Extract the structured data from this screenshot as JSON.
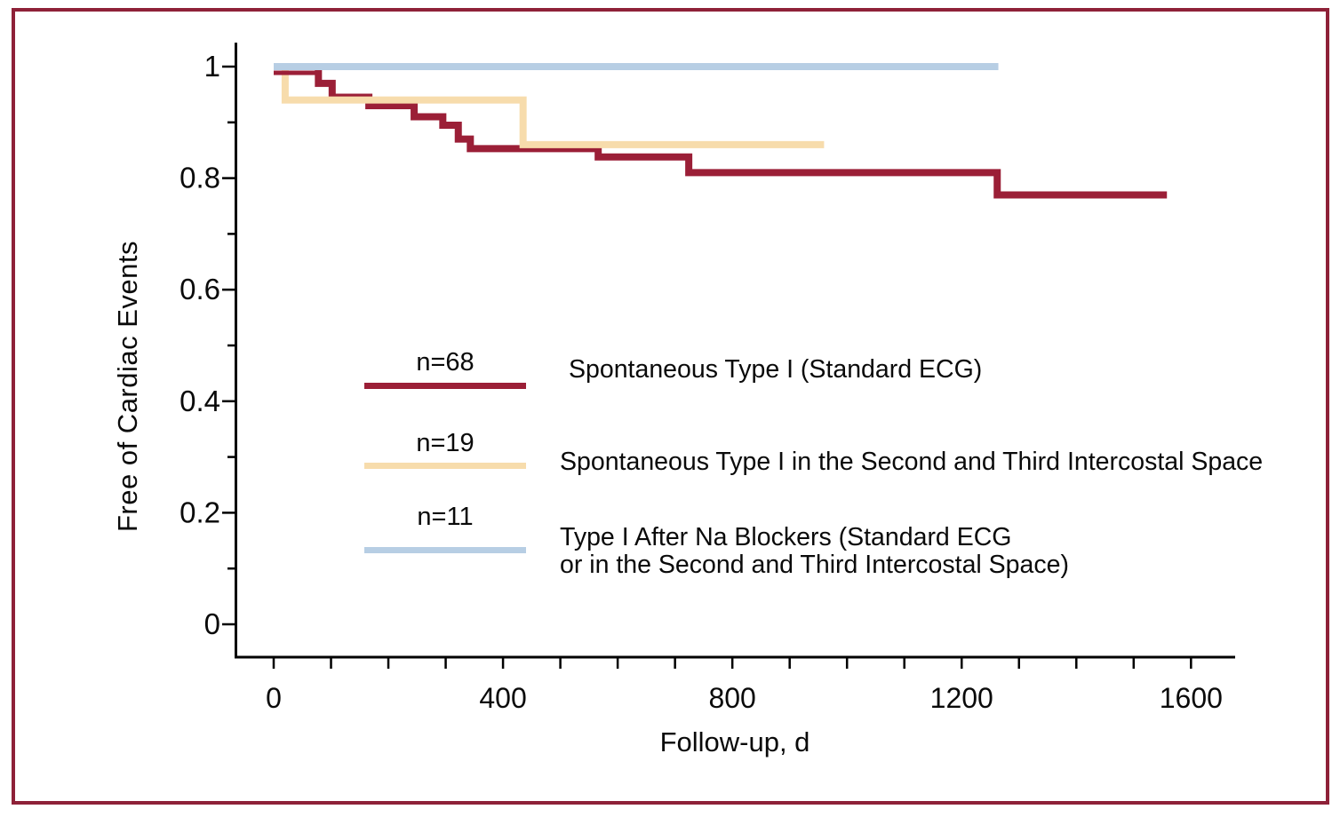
{
  "axes": {
    "x_title": "Follow-up, d",
    "y_title": "Free of Cardiac Events"
  },
  "legend": {
    "items": [
      {
        "n_label": "n=68",
        "label_line1": "Spontaneous Type I (Standard ECG)",
        "label_line2": "",
        "color": "#9B1F37"
      },
      {
        "n_label": "n=19",
        "label_line1": "Spontaneous Type I in the Second and Third Intercostal Space",
        "label_line2": "",
        "color": "#F7DCAC"
      },
      {
        "n_label": "n=11",
        "label_line1": "Type I After Na Blockers (Standard ECG",
        "label_line2": "or in the Second and Third Intercostal Space)",
        "color": "#B7CEE4"
      }
    ]
  },
  "colors": {
    "frame_border": "#8E2138",
    "axis": "#000000",
    "red_series": "#9B1F37",
    "tan_series": "#F7DCAC",
    "blue_series": "#B7CEE4"
  },
  "chart_data": {
    "type": "line",
    "subtype": "kaplan-meier-step",
    "title": "",
    "xlabel": "Follow-up, d",
    "ylabel": "Free of Cardiac Events",
    "xlim": [
      0,
      1675
    ],
    "ylim": [
      0,
      1.04
    ],
    "x_tick_step": 100,
    "x_tick_max": 1600,
    "x_tick_labels": [
      "0",
      "400",
      "800",
      "1200",
      "1600"
    ],
    "y_tick_step": 0.1,
    "y_tick_labels": [
      "0",
      "0.2",
      "0.4",
      "0.6",
      "0.8",
      "1"
    ],
    "grid": false,
    "legend_position": "inside-center-left",
    "series": [
      {
        "name": "Spontaneous Type I (Standard ECG)",
        "n": 68,
        "color": "#9B1F37",
        "steps": [
          [
            0,
            1.0
          ],
          [
            78,
            0.97
          ],
          [
            102,
            0.945
          ],
          [
            166,
            0.93
          ],
          [
            245,
            0.91
          ],
          [
            295,
            0.895
          ],
          [
            322,
            0.87
          ],
          [
            343,
            0.853
          ],
          [
            566,
            0.838
          ],
          [
            724,
            0.81
          ],
          [
            1262,
            0.77
          ]
        ],
        "end": 1558
      },
      {
        "name": "Spontaneous Type I in the Second and Third Intercostal Space",
        "n": 19,
        "color": "#F7DCAC",
        "steps": [
          [
            0,
            1.0
          ],
          [
            20,
            0.94
          ],
          [
            435,
            0.86
          ]
        ],
        "end": 960
      },
      {
        "name": "Type I After Na Blockers (Standard ECG or in the Second and Third Intercostal Space)",
        "n": 11,
        "color": "#B7CEE4",
        "steps": [
          [
            0,
            1.0
          ]
        ],
        "end": 1264
      }
    ]
  }
}
